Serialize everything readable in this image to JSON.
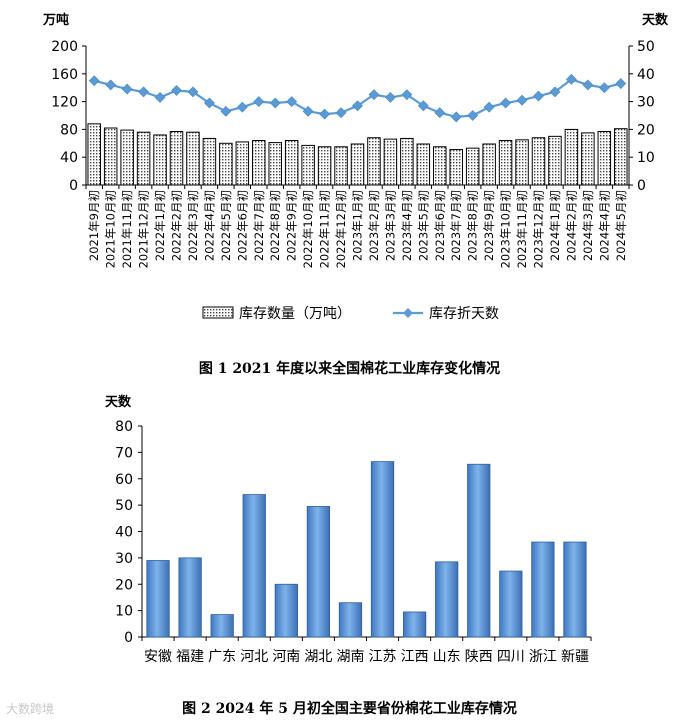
{
  "chart_data": [
    {
      "type": "bar+line",
      "title": "图 1   2021 年度以来全国棉花工业库存变化情况",
      "left_axis_unit": "万吨",
      "right_axis_unit": "天数",
      "ylim_left": [
        0,
        200
      ],
      "yticks_left": [
        0,
        40,
        80,
        120,
        160,
        200
      ],
      "ylim_right": [
        0,
        50
      ],
      "yticks_right": [
        0,
        10,
        20,
        30,
        40,
        50
      ],
      "categories": [
        "2021年9月初",
        "2021年10月初",
        "2021年11月初",
        "2021年12月初",
        "2022年1月初",
        "2022年2月初",
        "2022年3月初",
        "2022年4月初",
        "2022年5月初",
        "2022年6月初",
        "2022年7月初",
        "2022年8月初",
        "2022年9月初",
        "2022年10月初",
        "2022年11月初",
        "2022年12月初",
        "2023年1月初",
        "2023年2月初",
        "2023年3月初",
        "2023年4月初",
        "2023年5月初",
        "2023年6月初",
        "2023年7月初",
        "2023年8月初",
        "2023年9月初",
        "2023年10月初",
        "2023年11月初",
        "2023年12月初",
        "2024年1月初",
        "2024年2月初",
        "2024年3月初",
        "2024年4月初",
        "2024年5月初"
      ],
      "series": [
        {
          "name": "库存数量（万吨）",
          "kind": "bar",
          "axis": "left",
          "values": [
            88,
            82,
            79,
            76,
            72,
            77,
            76,
            67,
            60,
            62,
            64,
            61,
            64,
            57,
            55,
            55,
            59,
            68,
            66,
            67,
            59,
            55,
            51,
            53,
            59,
            64,
            65,
            68,
            70,
            80,
            75,
            77,
            81
          ]
        },
        {
          "name": "库存折天数",
          "kind": "line",
          "axis": "right",
          "values": [
            37.5,
            36,
            34.5,
            33.5,
            31.5,
            34,
            33.5,
            29.5,
            26.5,
            28,
            30,
            29.5,
            30,
            26.5,
            25.5,
            26,
            28.5,
            32.5,
            31.5,
            32.5,
            28.5,
            26,
            24.5,
            25,
            28,
            29.5,
            30.5,
            32,
            33.5,
            38,
            36,
            35,
            36.5
          ]
        }
      ]
    },
    {
      "type": "bar",
      "title": "图 2   2024 年 5 月初全国主要省份棉花工业库存情况",
      "ylabel": "天数",
      "ylim": [
        0,
        80
      ],
      "yticks": [
        0,
        10,
        20,
        30,
        40,
        50,
        60,
        70,
        80
      ],
      "categories": [
        "安徽",
        "福建",
        "广东",
        "河北",
        "河南",
        "湖北",
        "湖南",
        "江苏",
        "江西",
        "山东",
        "陕西",
        "四川",
        "浙江",
        "新疆"
      ],
      "values": [
        29,
        30,
        8.5,
        54,
        20,
        49.5,
        13,
        66.5,
        9.5,
        28.5,
        65.5,
        25,
        36,
        36
      ]
    }
  ],
  "watermark": "大数跨境"
}
